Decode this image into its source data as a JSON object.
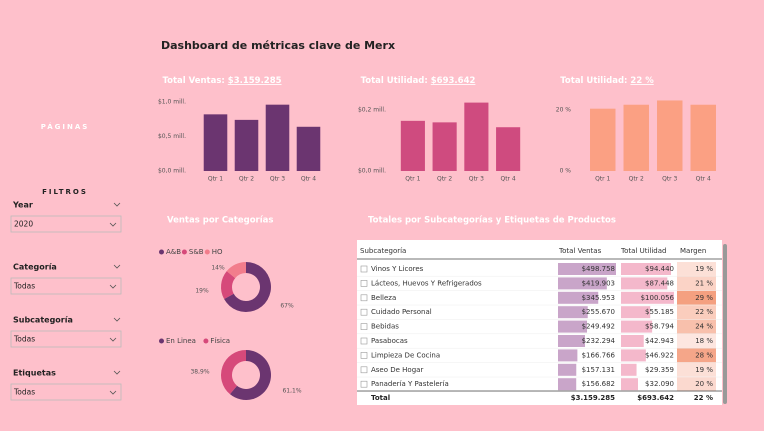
{
  "title": "Dashboard de métricas clave de Merx",
  "sidebar": {
    "pages": "PÁGINAS",
    "filters_title": "FILTROS",
    "filters": [
      {
        "label": "Year",
        "value": "2020"
      },
      {
        "label": "Categoría",
        "value": "Todas"
      },
      {
        "label": "Subcategoría",
        "value": "Todas"
      },
      {
        "label": "Etiquetas",
        "value": "Todas"
      }
    ]
  },
  "chart_data": [
    {
      "type": "bar",
      "title": "Total Ventas:",
      "title_value": "$3.159.285",
      "color": "#6b3570",
      "categories": [
        "Qtr 1",
        "Qtr 2",
        "Qtr 3",
        "Qtr 4"
      ],
      "values": [
        0.82,
        0.74,
        0.96,
        0.64
      ],
      "ylim": [
        0,
        1.1
      ],
      "yticks": [
        {
          "value": 0,
          "label": "$0,0 mill."
        },
        {
          "value": 0.5,
          "label": "$0,5 mill."
        },
        {
          "value": 1,
          "label": "$1,0 mill."
        }
      ]
    },
    {
      "type": "bar",
      "title": "Total Utilidad:",
      "title_value": "$693.642",
      "color": "#cf4b7f",
      "categories": [
        "Qtr 1",
        "Qtr 2",
        "Qtr 3",
        "Qtr 4"
      ],
      "values": [
        0.165,
        0.16,
        0.225,
        0.144
      ],
      "ylim": [
        0,
        0.25
      ],
      "yticks": [
        {
          "value": 0,
          "label": "$0,0 mill."
        },
        {
          "value": 0.2,
          "label": "$0,2 mill."
        }
      ]
    },
    {
      "type": "bar",
      "title": "Total Utilidad:",
      "title_value": "22 %",
      "color": "#fba083",
      "categories": [
        "Qtr 1",
        "Qtr 2",
        "Qtr 3",
        "Qtr 4"
      ],
      "values": [
        20.5,
        21.8,
        23.2,
        21.8
      ],
      "ylim": [
        0,
        25
      ],
      "yticks": [
        {
          "value": 0,
          "label": "0 %"
        },
        {
          "value": 20,
          "label": "20 %"
        }
      ]
    },
    {
      "type": "pie",
      "title": "Ventas por Categorías",
      "categories": [
        "A&B",
        "S&B",
        "HO"
      ],
      "values": [
        67,
        19,
        14
      ],
      "value_labels": [
        "67%",
        "19%",
        "14%"
      ],
      "colors": [
        "#6b3570",
        "#d6497a",
        "#f27d8c"
      ]
    },
    {
      "type": "pie",
      "categories": [
        "En Linea",
        "Física"
      ],
      "values": [
        61.1,
        38.9
      ],
      "value_labels": [
        "61,1%",
        "38,9%"
      ],
      "colors": [
        "#6b3570",
        "#d6497a"
      ]
    }
  ],
  "table": {
    "title": "Totales por Subcategorías y Etiquetas de Productos",
    "columns": [
      "Subcategoría",
      "Total Ventas",
      "Total Utilidad",
      "Margen"
    ],
    "rows": [
      [
        "Vinos Y Licores",
        "$498.758",
        "$94.440",
        "19 %"
      ],
      [
        "Lácteos, Huevos Y Refrigerados",
        "$419.903",
        "$87.448",
        "21 %"
      ],
      [
        "Belleza",
        "$345.953",
        "$100.056",
        "29 %"
      ],
      [
        "Cuidado Personal",
        "$255.670",
        "$55.185",
        "22 %"
      ],
      [
        "Bebidas",
        "$249.492",
        "$58.794",
        "24 %"
      ],
      [
        "Pasabocas",
        "$232.294",
        "$42.943",
        "18 %"
      ],
      [
        "Limpieza De Cocina",
        "$166.766",
        "$46.922",
        "28 %"
      ],
      [
        "Aseo De Hogar",
        "$157.131",
        "$29.359",
        "19 %"
      ],
      [
        "Panadería Y Pastelería",
        "$156.682",
        "$32.090",
        "20 %"
      ]
    ],
    "total": [
      "Total",
      "$3.159.285",
      "$693.642",
      "22 %"
    ]
  }
}
